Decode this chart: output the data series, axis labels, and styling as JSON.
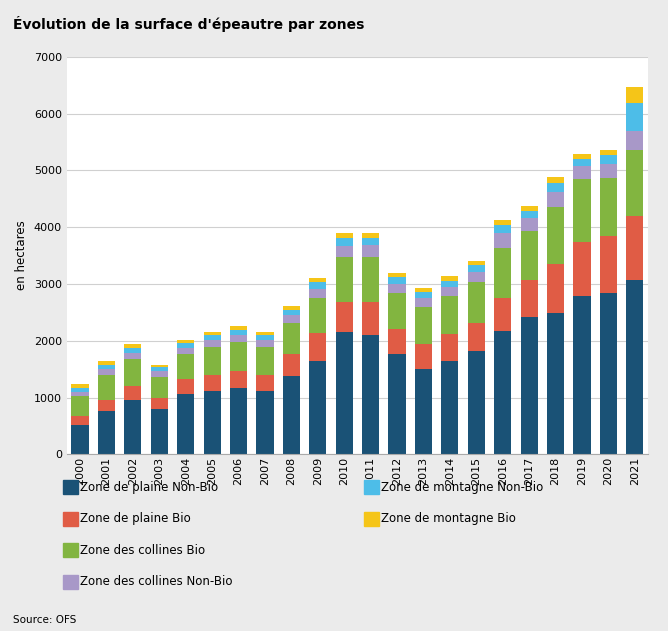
{
  "title": "Évolution de la surface d'épeautre par zones",
  "ylabel": "en hectares",
  "source": "Source: OFS",
  "years": [
    2000,
    2001,
    2002,
    2003,
    2004,
    2005,
    2006,
    2007,
    2008,
    2009,
    2010,
    2011,
    2012,
    2013,
    2014,
    2015,
    2016,
    2017,
    2018,
    2019,
    2020,
    2021
  ],
  "series": {
    "Zone de plaine Non-Bio": [
      510,
      770,
      960,
      790,
      1060,
      1110,
      1160,
      1110,
      1380,
      1640,
      2150,
      2100,
      1760,
      1510,
      1650,
      1820,
      2180,
      2420,
      2480,
      2780,
      2840,
      3070
    ],
    "Zone de plaine Bio": [
      160,
      195,
      235,
      200,
      270,
      285,
      300,
      290,
      390,
      490,
      540,
      580,
      440,
      440,
      460,
      500,
      580,
      650,
      870,
      960,
      1000,
      1120
    ],
    "Zone des collines Bio": [
      350,
      430,
      480,
      380,
      440,
      490,
      510,
      490,
      540,
      620,
      780,
      800,
      640,
      640,
      680,
      710,
      880,
      860,
      1000,
      1100,
      1020,
      1170
    ],
    "Zone des collines Non-Bio": [
      70,
      100,
      115,
      90,
      110,
      130,
      135,
      125,
      140,
      160,
      190,
      200,
      165,
      160,
      165,
      185,
      250,
      230,
      270,
      230,
      260,
      340
    ],
    "Zone de montagne Non-Bio": [
      85,
      80,
      90,
      70,
      80,
      85,
      90,
      80,
      100,
      120,
      145,
      135,
      110,
      100,
      105,
      110,
      140,
      120,
      160,
      135,
      145,
      490
    ],
    "Zone de montagne Bio": [
      55,
      60,
      65,
      50,
      55,
      60,
      65,
      55,
      70,
      80,
      90,
      85,
      75,
      70,
      75,
      80,
      95,
      85,
      100,
      90,
      100,
      270
    ]
  },
  "colors": {
    "Zone de plaine Non-Bio": "#1a5276",
    "Zone de plaine Bio": "#e05c45",
    "Zone des collines Bio": "#82b540",
    "Zone des collines Non-Bio": "#a898c8",
    "Zone de montagne Non-Bio": "#4dbde8",
    "Zone de montagne Bio": "#f5c518"
  },
  "stack_order": [
    "Zone de plaine Non-Bio",
    "Zone de plaine Bio",
    "Zone des collines Bio",
    "Zone des collines Non-Bio",
    "Zone de montagne Non-Bio",
    "Zone de montagne Bio"
  ],
  "legend_col1": [
    "Zone de plaine Non-Bio",
    "Zone de plaine Bio",
    "Zone des collines Bio",
    "Zone des collines Non-Bio"
  ],
  "legend_col2": [
    "Zone de montagne Non-Bio",
    "Zone de montagne Bio"
  ],
  "ylim": [
    0,
    7000
  ],
  "yticks": [
    0,
    1000,
    2000,
    3000,
    4000,
    5000,
    6000,
    7000
  ],
  "background_color": "#ebebeb",
  "plot_bg": "#ffffff",
  "title_fontsize": 10,
  "axis_fontsize": 8.5,
  "tick_fontsize": 8
}
